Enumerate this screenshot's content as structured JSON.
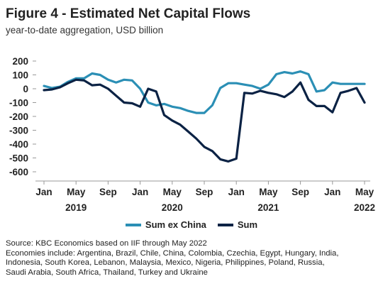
{
  "figure_title": "Figure 4 - Estimated Net Capital Flows",
  "subtitle": "year-to-date aggregation, USD billion",
  "notes": [
    "Source: KBC Economics based on IIF through May 2022",
    "Economies include: Argentina, Brazil, Chile, China, Colombia, Czechia, Egypt, Hungary, India,",
    "Indonesia, South Korea, Lebanon, Malaysia, Mexico, Nigeria, Philippines, Poland, Russia,",
    "Saudi Arabia, South Africa, Thailand, Turkey and Ukraine"
  ],
  "chart_data": {
    "type": "line",
    "title": "Figure 4 - Estimated Net Capital Flows",
    "subtitle": "year-to-date aggregation, USD billion",
    "xlabel": "",
    "ylabel": "",
    "ylim": [
      -600,
      200
    ],
    "yticks": [
      200,
      100,
      0,
      -100,
      -200,
      -300,
      -400,
      -500,
      -600
    ],
    "grid": false,
    "legend_position": "bottom",
    "x": [
      "2019-01",
      "2019-02",
      "2019-03",
      "2019-04",
      "2019-05",
      "2019-06",
      "2019-07",
      "2019-08",
      "2019-09",
      "2019-10",
      "2019-11",
      "2019-12",
      "2020-01",
      "2020-02",
      "2020-03",
      "2020-04",
      "2020-05",
      "2020-06",
      "2020-07",
      "2020-08",
      "2020-09",
      "2020-10",
      "2020-11",
      "2020-12",
      "2021-01",
      "2021-02",
      "2021-03",
      "2021-04",
      "2021-05",
      "2021-06",
      "2021-07",
      "2021-08",
      "2021-09",
      "2021-10",
      "2021-11",
      "2021-12",
      "2022-01",
      "2022-02",
      "2022-03",
      "2022-04",
      "2022-05"
    ],
    "x_tick_labels": [
      "Jan",
      "May",
      "Sep",
      "Jan",
      "May",
      "Sep",
      "Jan",
      "May",
      "Sep",
      "Jan",
      "May"
    ],
    "x_tick_positions": [
      "2019-01",
      "2019-05",
      "2019-09",
      "2020-01",
      "2020-05",
      "2020-09",
      "2021-01",
      "2021-05",
      "2021-09",
      "2022-01",
      "2022-05"
    ],
    "year_labels": [
      {
        "text": "2019",
        "at": "2019-05"
      },
      {
        "text": "2020",
        "at": "2020-05"
      },
      {
        "text": "2021",
        "at": "2021-05"
      },
      {
        "text": "2022",
        "at": "2022-05"
      }
    ],
    "series": [
      {
        "name": "Sum ex China",
        "color": "#2b8fb5",
        "values": [
          20,
          5,
          15,
          50,
          75,
          75,
          110,
          100,
          65,
          45,
          65,
          60,
          0,
          -100,
          -120,
          -110,
          -130,
          -140,
          -160,
          -175,
          -175,
          -120,
          5,
          40,
          40,
          30,
          20,
          0,
          30,
          105,
          120,
          110,
          125,
          105,
          -20,
          -10,
          45,
          35,
          35,
          35,
          35
        ]
      },
      {
        "name": "Sum",
        "color": "#0b2244",
        "values": [
          -10,
          -5,
          10,
          40,
          65,
          60,
          25,
          30,
          0,
          -50,
          -100,
          -105,
          -130,
          0,
          -20,
          -190,
          -230,
          -260,
          -310,
          -360,
          -420,
          -450,
          -510,
          -525,
          -505,
          -30,
          -35,
          -15,
          -30,
          -40,
          -60,
          -20,
          45,
          -80,
          -125,
          -125,
          -170,
          -30,
          -15,
          5,
          -100
        ]
      }
    ]
  }
}
